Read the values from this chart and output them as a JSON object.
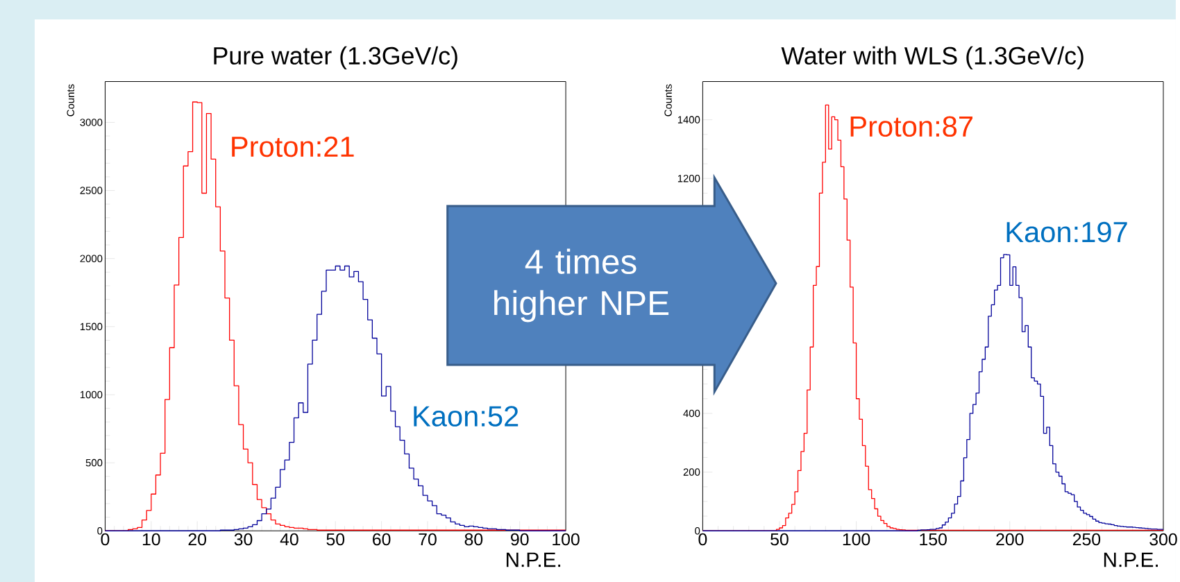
{
  "chart_data": [
    {
      "type": "histogram",
      "title": "Pure water (1.3GeV/c)",
      "xlabel": "N.P.E.",
      "ylabel": "Counts",
      "bins": [
        0,
        1,
        2,
        3,
        4,
        5,
        6,
        7,
        8,
        9,
        10,
        11,
        12,
        13,
        14,
        15,
        16,
        17,
        18,
        19,
        20,
        21,
        22,
        23,
        24,
        25,
        26,
        27,
        28,
        29,
        30,
        31,
        32,
        33,
        34,
        35,
        36,
        37,
        38,
        39,
        40,
        41,
        42,
        43,
        44,
        45,
        46,
        47,
        48,
        49,
        50,
        51,
        52,
        53,
        54,
        55,
        56,
        57,
        58,
        59,
        60,
        61,
        62,
        63,
        64,
        65,
        66,
        67,
        68,
        69,
        70,
        71,
        72,
        73,
        74,
        75,
        76,
        77,
        78,
        79,
        80,
        81,
        82,
        83,
        84,
        85,
        86,
        87,
        88,
        89,
        90,
        91,
        92,
        93,
        94,
        95,
        96,
        97,
        98,
        99,
        100
      ],
      "series": [
        {
          "color": "#ff0000",
          "values": [
            0,
            0,
            0,
            0,
            0,
            10,
            15,
            25,
            80,
            150,
            270,
            410,
            570,
            965,
            1345,
            1805,
            2155,
            2680,
            2785,
            3150,
            3145,
            2480,
            3065,
            2730,
            2380,
            2055,
            1710,
            1400,
            1065,
            780,
            600,
            500,
            340,
            230,
            170,
            125,
            80,
            50,
            40,
            30,
            25,
            20,
            20,
            15,
            10,
            10,
            5,
            5,
            5,
            5,
            5,
            5,
            5,
            5,
            5,
            5,
            5,
            5,
            5,
            5,
            5,
            5,
            5,
            5,
            5,
            5,
            5,
            5,
            5,
            5,
            5,
            5,
            5,
            5,
            5,
            5,
            5,
            5,
            5,
            5,
            5,
            5,
            5,
            5,
            5,
            5,
            5,
            5,
            5,
            5,
            5,
            5,
            5,
            5,
            5,
            5,
            5,
            5,
            5,
            5
          ]
        },
        {
          "color": "#000099",
          "values": [
            0,
            0,
            0,
            0,
            0,
            0,
            0,
            0,
            0,
            0,
            0,
            0,
            0,
            0,
            0,
            0,
            0,
            0,
            0,
            0,
            0,
            0,
            0,
            0,
            0,
            5,
            5,
            5,
            10,
            15,
            20,
            30,
            45,
            75,
            125,
            160,
            240,
            320,
            450,
            520,
            650,
            830,
            940,
            870,
            1225,
            1400,
            1590,
            1760,
            1915,
            1915,
            1945,
            1915,
            1945,
            1865,
            1905,
            1830,
            1700,
            1550,
            1415,
            1300,
            990,
            1060,
            880,
            765,
            665,
            565,
            460,
            380,
            330,
            260,
            220,
            185,
            125,
            115,
            95,
            65,
            50,
            40,
            30,
            35,
            30,
            25,
            20,
            15,
            15,
            10,
            10,
            5,
            5,
            5,
            0,
            0,
            0,
            0,
            0,
            0,
            0,
            0,
            0,
            0
          ]
        }
      ],
      "xlim": [
        0,
        100
      ],
      "ylim": [
        0,
        3300
      ],
      "xticks": [
        0,
        10,
        20,
        30,
        40,
        50,
        60,
        70,
        80,
        90,
        100
      ],
      "yticks": [
        0,
        500,
        1000,
        1500,
        2000,
        2500,
        3000
      ],
      "annotations": [
        "Proton:21",
        "Kaon:52",
        "4 times higher NPE"
      ]
    },
    {
      "type": "histogram",
      "title": "Water with WLS (1.3GeV/c)",
      "xlabel": "N.P.E.",
      "ylabel": "Counts",
      "bins": [
        0,
        2,
        4,
        6,
        8,
        10,
        12,
        14,
        16,
        18,
        20,
        22,
        24,
        26,
        28,
        30,
        32,
        34,
        36,
        38,
        40,
        42,
        44,
        46,
        48,
        50,
        52,
        54,
        56,
        58,
        60,
        62,
        64,
        66,
        68,
        70,
        72,
        74,
        76,
        78,
        80,
        82,
        84,
        86,
        88,
        90,
        92,
        94,
        96,
        98,
        100,
        102,
        104,
        106,
        108,
        110,
        112,
        114,
        116,
        118,
        120,
        122,
        124,
        126,
        128,
        130,
        132,
        134,
        136,
        138,
        140,
        142,
        144,
        146,
        148,
        150,
        152,
        154,
        156,
        158,
        160,
        162,
        164,
        166,
        168,
        170,
        172,
        174,
        176,
        178,
        180,
        182,
        184,
        186,
        188,
        190,
        192,
        194,
        196,
        198,
        200,
        202,
        204,
        206,
        208,
        210,
        212,
        214,
        216,
        218,
        220,
        222,
        224,
        226,
        228,
        230,
        232,
        234,
        236,
        238,
        240,
        242,
        244,
        246,
        248,
        250,
        252,
        254,
        256,
        258,
        260,
        262,
        264,
        266,
        268,
        270,
        272,
        274,
        276,
        278,
        280,
        282,
        284,
        286,
        288,
        290,
        292,
        294,
        296,
        298,
        300
      ],
      "series": [
        {
          "color": "#ff0000",
          "values": [
            0,
            0,
            0,
            0,
            0,
            0,
            0,
            0,
            0,
            0,
            0,
            0,
            0,
            0,
            0,
            0,
            0,
            0,
            0,
            0,
            0,
            0,
            0,
            0,
            5,
            10,
            18,
            44,
            60,
            90,
            133,
            205,
            270,
            332,
            480,
            626,
            836,
            900,
            1150,
            1255,
            1450,
            1300,
            1410,
            1400,
            1330,
            1240,
            1130,
            990,
            830,
            640,
            450,
            380,
            290,
            220,
            140,
            110,
            75,
            50,
            35,
            25,
            15,
            10,
            8,
            5,
            4,
            3,
            2,
            2,
            2,
            2,
            2,
            2,
            2,
            2,
            2,
            2,
            2,
            2,
            2,
            2,
            2,
            2,
            2,
            2,
            2,
            2,
            2,
            2,
            2,
            2,
            2,
            2,
            2,
            2,
            2,
            2,
            2,
            2,
            2,
            2,
            2,
            2,
            2,
            2,
            2,
            2,
            2,
            2,
            2,
            2,
            2,
            2,
            2,
            2,
            2,
            2,
            2,
            2,
            2,
            2,
            2,
            2,
            2,
            2,
            2,
            2,
            2,
            2,
            2,
            2,
            2,
            2,
            2,
            2,
            2,
            2,
            2,
            2,
            2,
            2,
            2,
            2,
            2,
            2,
            2,
            2,
            2,
            2,
            2,
            2
          ]
        },
        {
          "color": "#000099",
          "values": [
            0,
            0,
            0,
            0,
            0,
            0,
            0,
            0,
            0,
            0,
            0,
            0,
            0,
            0,
            0,
            0,
            0,
            0,
            0,
            0,
            0,
            0,
            0,
            0,
            0,
            0,
            0,
            0,
            0,
            0,
            0,
            0,
            0,
            0,
            0,
            0,
            0,
            0,
            0,
            0,
            0,
            0,
            0,
            0,
            0,
            0,
            0,
            0,
            0,
            0,
            0,
            0,
            0,
            0,
            0,
            0,
            0,
            0,
            0,
            0,
            0,
            0,
            0,
            0,
            0,
            0,
            0,
            0,
            0,
            0,
            2,
            3,
            3,
            4,
            5,
            5,
            8,
            10,
            20,
            30,
            44,
            60,
            91,
            117,
            170,
            249,
            311,
            400,
            430,
            469,
            542,
            584,
            626,
            731,
            770,
            820,
            836,
            930,
            941,
            940,
            836,
            899,
            836,
            794,
            678,
            699,
            626,
            521,
            510,
            500,
            458,
            332,
            353,
            290,
            228,
            200,
            186,
            160,
            133,
            128,
            123,
            100,
            81,
            70,
            60,
            55,
            49,
            40,
            33,
            28,
            26,
            24,
            23,
            21,
            18,
            16,
            15,
            14,
            13,
            13,
            12,
            11,
            10,
            9,
            8,
            7,
            6,
            6,
            5,
            5
          ]
        }
      ],
      "xlim": [
        0,
        300
      ],
      "ylim": [
        0,
        1530
      ],
      "xticks": [
        0,
        50,
        100,
        150,
        200,
        250,
        300
      ],
      "yticks": [
        0,
        200,
        400,
        {
          "value": 600,
          "label": null
        },
        {
          "value": 800,
          "label": null
        },
        {
          "value": 1000,
          "label": null
        },
        1200,
        1400
      ],
      "annotations": [
        "Proton:87",
        "Kaon:197"
      ]
    }
  ]
}
